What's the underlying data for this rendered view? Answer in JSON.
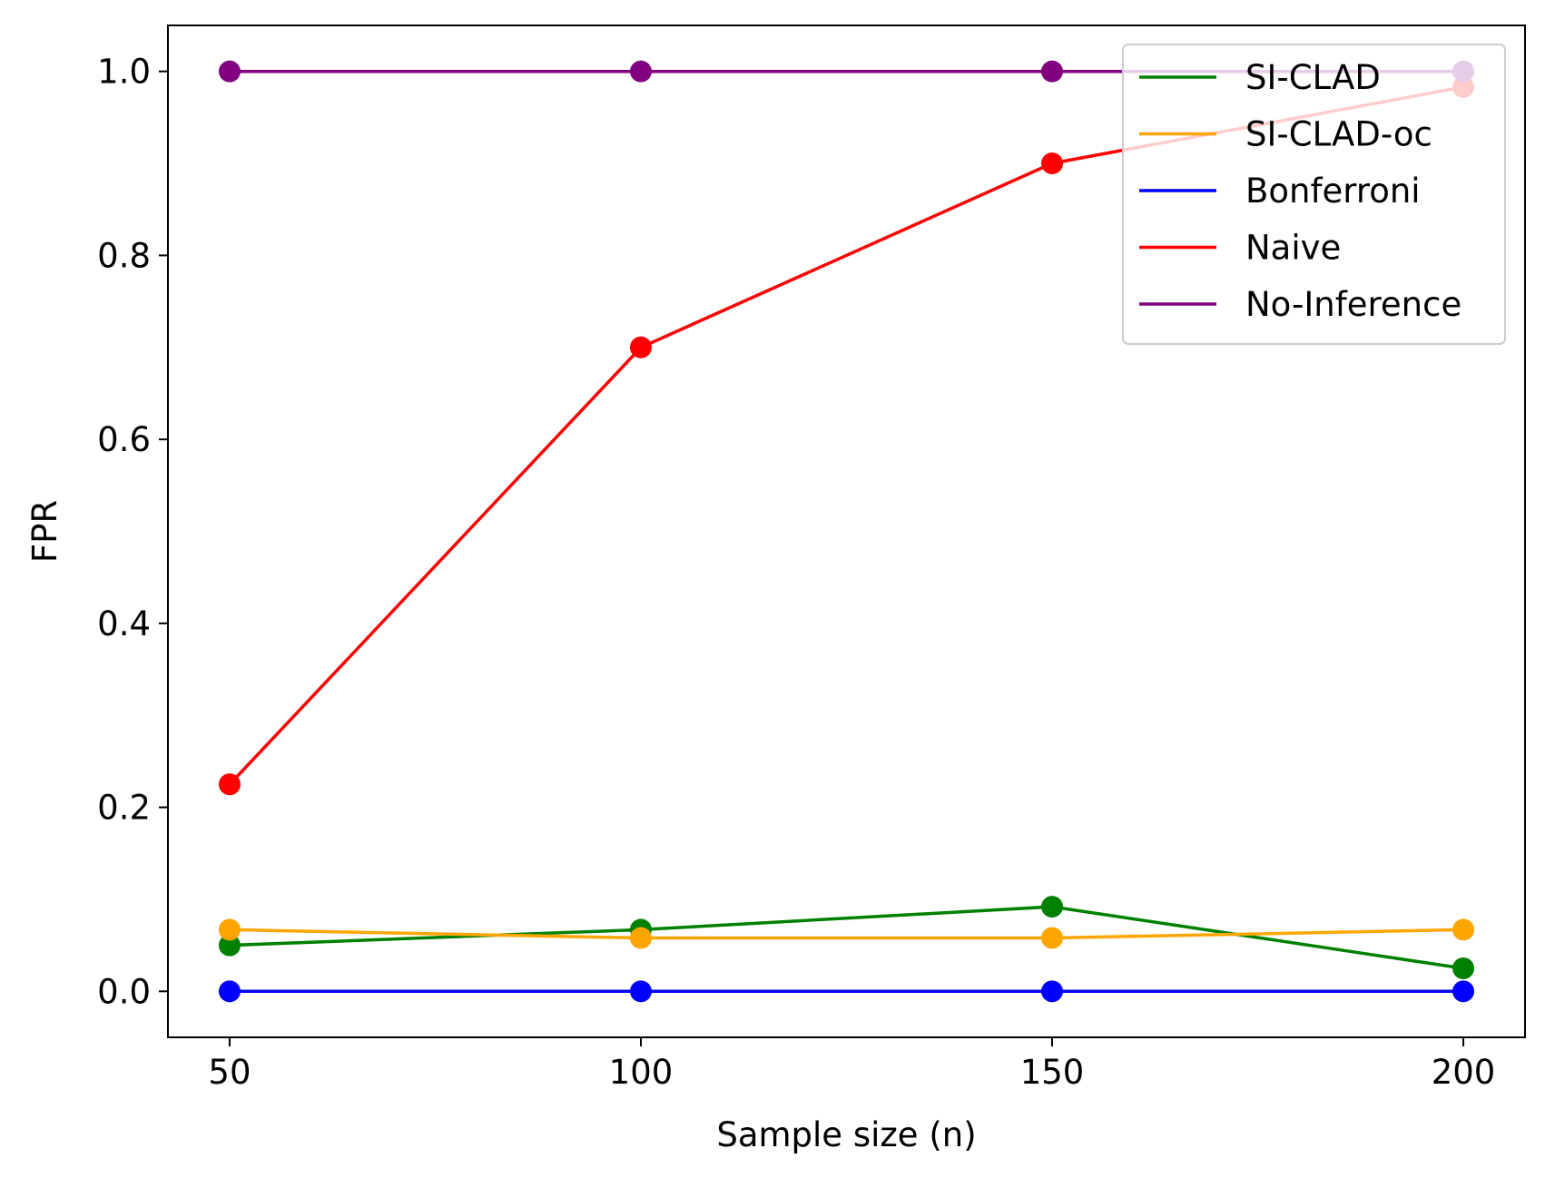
{
  "chart_data": {
    "type": "line",
    "title": "",
    "xlabel": "Sample size (n)",
    "ylabel": "FPR",
    "x": [
      50,
      100,
      150,
      200
    ],
    "xticks": [
      50,
      100,
      150,
      200
    ],
    "yticks": [
      0.0,
      0.2,
      0.4,
      0.6,
      0.8,
      1.0
    ],
    "ytick_labels": [
      "0.0",
      "0.2",
      "0.4",
      "0.6",
      "0.8",
      "1.0"
    ],
    "xlim": [
      42.5,
      207.5
    ],
    "ylim": [
      -0.05,
      1.05
    ],
    "grid": false,
    "legend_position": "top-right",
    "series": [
      {
        "name": "SI-CLAD",
        "color": "#008000",
        "values": [
          0.05,
          0.067,
          0.092,
          0.025
        ]
      },
      {
        "name": "SI-CLAD-oc",
        "color": "#ffa500",
        "values": [
          0.067,
          0.058,
          0.058,
          0.067
        ]
      },
      {
        "name": "Bonferroni",
        "color": "#0000ff",
        "values": [
          0.0,
          0.0,
          0.0,
          0.0
        ]
      },
      {
        "name": "Naive",
        "color": "#ff0000",
        "values": [
          0.225,
          0.7,
          0.9,
          0.983
        ]
      },
      {
        "name": "No-Inference",
        "color": "#800080",
        "values": [
          1.0,
          1.0,
          1.0,
          1.0
        ]
      }
    ]
  }
}
